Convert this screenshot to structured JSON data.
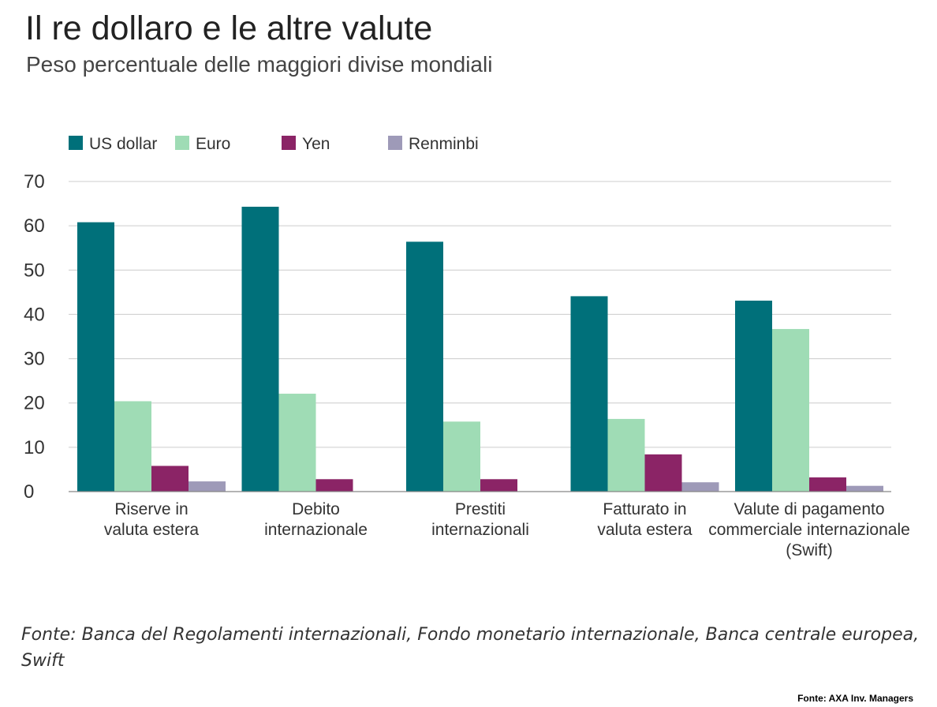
{
  "title": "Il re dollaro e le altre valute",
  "subtitle": "Peso percentuale delle maggiori divise mondiali",
  "source": "Fonte: Banca del Regolamenti internazionali, Fondo monetario internazionale, Banca centrale europea, Swift",
  "credit": "Fonte: AXA Inv. Managers",
  "colors": {
    "us_dollar": "#00707a",
    "euro": "#9fdcb5",
    "yen": "#8b2466",
    "renminbi": "#9e9ab8",
    "grid": "#cccccc"
  },
  "chart_data": {
    "type": "bar",
    "categories": [
      [
        "Riserve in",
        "valuta estera"
      ],
      [
        "Debito",
        "internazionale"
      ],
      [
        "Prestiti",
        "internazionali"
      ],
      [
        "Fatturato in",
        "valuta estera"
      ],
      [
        "Valute di pagamento",
        "commerciale internazionale",
        "(Swift)"
      ]
    ],
    "series": [
      {
        "name": "US dollar",
        "color_key": "us_dollar",
        "values": [
          60.8,
          64.3,
          56.4,
          44.1,
          43.1
        ]
      },
      {
        "name": "Euro",
        "color_key": "euro",
        "values": [
          20.4,
          22.1,
          15.8,
          16.4,
          36.7
        ]
      },
      {
        "name": "Yen",
        "color_key": "yen",
        "values": [
          5.8,
          2.8,
          2.8,
          8.4,
          3.2
        ]
      },
      {
        "name": "Renminbi",
        "color_key": "renminbi",
        "values": [
          2.3,
          0,
          0,
          2.1,
          1.3
        ]
      }
    ],
    "yticks": [
      0,
      10,
      20,
      30,
      40,
      50,
      60,
      70
    ],
    "ylim": [
      0,
      70
    ],
    "grid": true,
    "legend_position": "top-left"
  }
}
